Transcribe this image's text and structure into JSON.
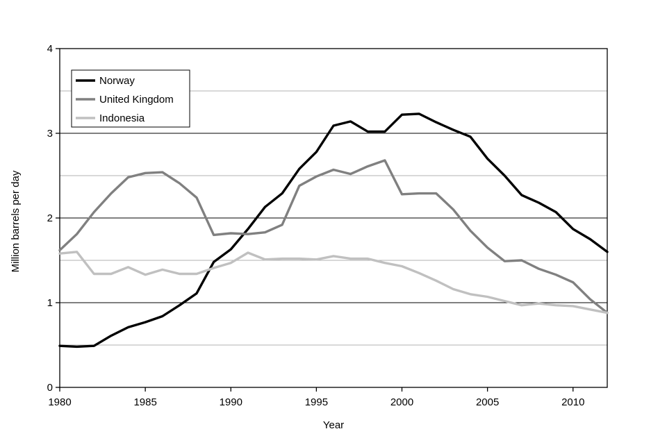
{
  "chart_data": {
    "type": "line",
    "title": "",
    "xlabel": "Year",
    "ylabel": "Million barrels per day",
    "xlim": [
      1980,
      2012
    ],
    "ylim": [
      0,
      4
    ],
    "x_ticks": [
      1980,
      1985,
      1990,
      1995,
      2000,
      2005,
      2010
    ],
    "y_ticks": [
      0,
      1,
      2,
      3,
      4
    ],
    "grid": "horizontal",
    "legend_position": "top-left",
    "x": [
      1980,
      1981,
      1982,
      1983,
      1984,
      1985,
      1986,
      1987,
      1988,
      1989,
      1990,
      1991,
      1992,
      1993,
      1994,
      1995,
      1996,
      1997,
      1998,
      1999,
      2000,
      2001,
      2002,
      2003,
      2004,
      2005,
      2006,
      2007,
      2008,
      2009,
      2010,
      2011,
      2012
    ],
    "series": [
      {
        "name": "Norway",
        "color": "#000000",
        "values": [
          0.49,
          0.48,
          0.49,
          0.61,
          0.71,
          0.77,
          0.84,
          0.97,
          1.11,
          1.48,
          1.63,
          1.87,
          2.13,
          2.29,
          2.58,
          2.78,
          3.09,
          3.14,
          3.02,
          3.02,
          3.22,
          3.23,
          3.13,
          3.04,
          2.96,
          2.7,
          2.5,
          2.27,
          2.18,
          2.07,
          1.87,
          1.75,
          1.6
        ]
      },
      {
        "name": "United Kingdom",
        "color": "#808080",
        "values": [
          1.62,
          1.81,
          2.07,
          2.29,
          2.48,
          2.53,
          2.54,
          2.41,
          2.24,
          1.8,
          1.82,
          1.81,
          1.83,
          1.92,
          2.38,
          2.49,
          2.57,
          2.52,
          2.61,
          2.68,
          2.28,
          2.29,
          2.29,
          2.1,
          1.85,
          1.65,
          1.49,
          1.5,
          1.4,
          1.33,
          1.24,
          1.04,
          0.88
        ]
      },
      {
        "name": "Indonesia",
        "color": "#c0c0c0",
        "values": [
          1.58,
          1.6,
          1.34,
          1.34,
          1.42,
          1.33,
          1.39,
          1.34,
          1.34,
          1.41,
          1.47,
          1.59,
          1.51,
          1.52,
          1.52,
          1.51,
          1.55,
          1.52,
          1.52,
          1.47,
          1.43,
          1.35,
          1.26,
          1.16,
          1.1,
          1.07,
          1.02,
          0.97,
          0.99,
          0.97,
          0.96,
          0.92,
          0.88
        ]
      }
    ]
  }
}
